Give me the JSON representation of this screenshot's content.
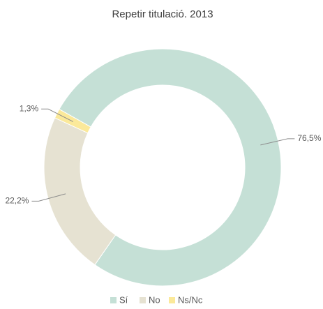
{
  "chart_data": {
    "type": "pie",
    "title": "Repetir titulació. 2013",
    "categories": [
      "Sí",
      "No",
      "Ns/Nc"
    ],
    "values": [
      76.5,
      22.2,
      1.3
    ],
    "value_labels": [
      "76,5%",
      "22,2%",
      "1,3%"
    ],
    "colors": [
      "#c5e0d6",
      "#e6e2d2",
      "#fbe99a"
    ],
    "donut": true,
    "legend": "bottom"
  }
}
